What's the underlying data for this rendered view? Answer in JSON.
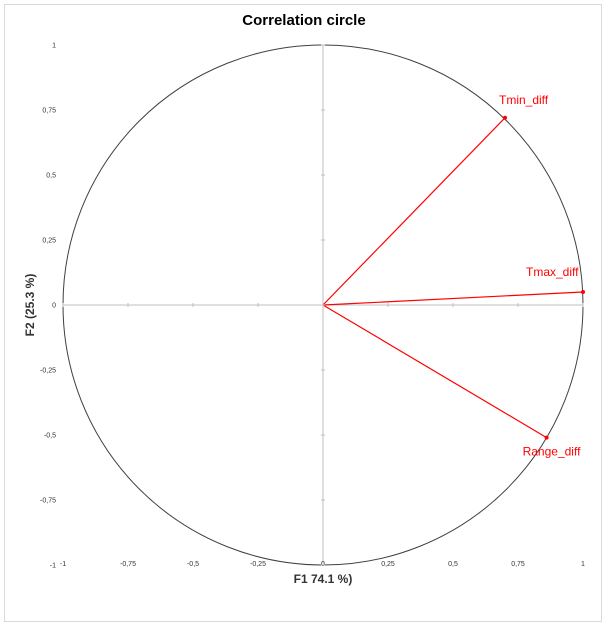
{
  "chart_data": {
    "type": "scatter",
    "subtype": "correlation-circle",
    "title": "Correlation circle",
    "xlabel": "F1 74.1 %)",
    "ylabel": "F2 (25.3 %)",
    "xlim": [
      -1,
      1
    ],
    "ylim": [
      -1,
      1
    ],
    "xticks": [
      "-1",
      "-0,75",
      "-0,5",
      "-0,25",
      "0",
      "0,25",
      "0,5",
      "0,75",
      "1"
    ],
    "yticks": [
      "-1",
      "-0,75",
      "-0,5",
      "-0,25",
      "0",
      "0,25",
      "0,5",
      "0,75",
      "1"
    ],
    "grid": false,
    "vector_color": "#ff0000",
    "vectors": [
      {
        "name": "Tmin_diff",
        "x": 0.7,
        "y": 0.72
      },
      {
        "name": "Tmax_diff",
        "x": 1.0,
        "y": 0.05
      },
      {
        "name": "Range_diff",
        "x": 0.86,
        "y": -0.51
      }
    ]
  }
}
